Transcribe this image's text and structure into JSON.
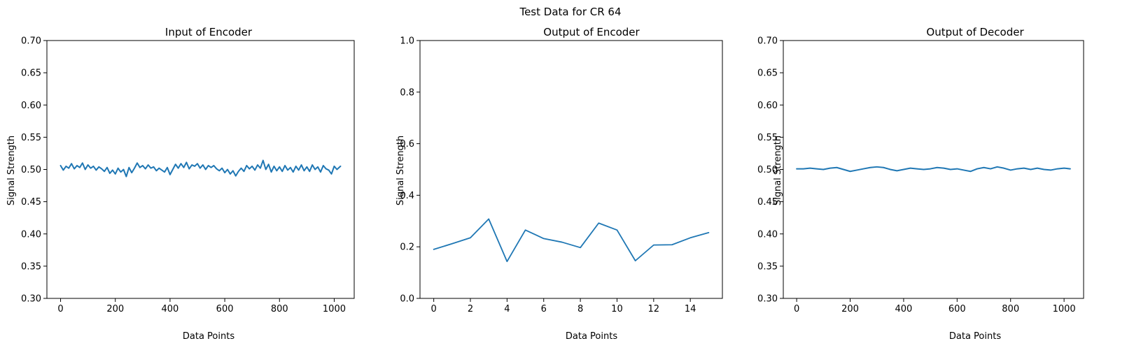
{
  "figure": {
    "suptitle": "Test Data for CR 64"
  },
  "colors": {
    "series": "#1f77b4",
    "axes": "#000000",
    "background": "#ffffff"
  },
  "chart_data": [
    {
      "type": "line",
      "title": "Input of Encoder",
      "xlabel": "Data Points",
      "ylabel": "Signal Strength",
      "xlim": [
        -50,
        1073
      ],
      "ylim": [
        0.3,
        0.7
      ],
      "xticks": [
        0,
        200,
        400,
        600,
        800,
        1000
      ],
      "yticks": [
        0.3,
        0.35,
        0.4,
        0.45,
        0.5,
        0.55,
        0.6,
        0.65,
        0.7
      ],
      "ytick_decimals": 2,
      "grid": false,
      "series": [
        {
          "x": [
            0,
            10,
            20,
            30,
            40,
            50,
            60,
            70,
            80,
            90,
            100,
            110,
            120,
            130,
            140,
            150,
            160,
            170,
            180,
            190,
            200,
            210,
            220,
            230,
            240,
            250,
            260,
            270,
            280,
            290,
            300,
            310,
            320,
            330,
            340,
            350,
            360,
            370,
            380,
            390,
            400,
            410,
            420,
            430,
            440,
            450,
            460,
            470,
            480,
            490,
            500,
            510,
            520,
            530,
            540,
            550,
            560,
            570,
            580,
            590,
            600,
            610,
            620,
            630,
            640,
            650,
            660,
            670,
            680,
            690,
            700,
            710,
            720,
            730,
            740,
            750,
            760,
            770,
            780,
            790,
            800,
            810,
            820,
            830,
            840,
            850,
            860,
            870,
            880,
            890,
            900,
            910,
            920,
            930,
            940,
            950,
            960,
            970,
            980,
            990,
            1000,
            1010,
            1023
          ],
          "values": [
            0.506,
            0.499,
            0.505,
            0.502,
            0.509,
            0.501,
            0.506,
            0.503,
            0.51,
            0.5,
            0.507,
            0.502,
            0.505,
            0.499,
            0.504,
            0.501,
            0.497,
            0.503,
            0.494,
            0.499,
            0.493,
            0.502,
            0.496,
            0.5,
            0.489,
            0.503,
            0.495,
            0.502,
            0.51,
            0.503,
            0.506,
            0.501,
            0.507,
            0.502,
            0.504,
            0.498,
            0.502,
            0.499,
            0.496,
            0.503,
            0.492,
            0.5,
            0.508,
            0.502,
            0.509,
            0.503,
            0.511,
            0.501,
            0.507,
            0.505,
            0.509,
            0.502,
            0.507,
            0.5,
            0.506,
            0.503,
            0.506,
            0.501,
            0.498,
            0.502,
            0.495,
            0.5,
            0.493,
            0.498,
            0.49,
            0.497,
            0.502,
            0.497,
            0.506,
            0.501,
            0.505,
            0.499,
            0.507,
            0.502,
            0.514,
            0.5,
            0.508,
            0.496,
            0.505,
            0.498,
            0.504,
            0.497,
            0.506,
            0.499,
            0.503,
            0.496,
            0.505,
            0.499,
            0.507,
            0.498,
            0.504,
            0.497,
            0.507,
            0.5,
            0.504,
            0.496,
            0.506,
            0.501,
            0.499,
            0.493,
            0.505,
            0.5,
            0.505
          ]
        }
      ]
    },
    {
      "type": "line",
      "title": "Output of Encoder",
      "xlabel": "Data Points",
      "ylabel": "Signal Strength",
      "xlim": [
        -0.75,
        15.75
      ],
      "ylim": [
        0.0,
        1.0
      ],
      "xticks": [
        0,
        2,
        4,
        6,
        8,
        10,
        12,
        14
      ],
      "yticks": [
        0.0,
        0.2,
        0.4,
        0.6,
        0.8,
        1.0
      ],
      "ytick_decimals": 1,
      "grid": false,
      "series": [
        {
          "x": [
            0,
            1,
            2,
            3,
            4,
            5,
            6,
            7,
            8,
            9,
            10,
            11,
            12,
            13,
            14,
            15
          ],
          "values": [
            0.19,
            0.212,
            0.235,
            0.308,
            0.143,
            0.265,
            0.232,
            0.218,
            0.197,
            0.292,
            0.265,
            0.146,
            0.207,
            0.208,
            0.235,
            0.255
          ]
        }
      ]
    },
    {
      "type": "line",
      "title": "Output of Decoder",
      "xlabel": "Data Points",
      "ylabel": "Signal Strength",
      "xlim": [
        -50,
        1073
      ],
      "ylim": [
        0.3,
        0.7
      ],
      "xticks": [
        0,
        200,
        400,
        600,
        800,
        1000
      ],
      "yticks": [
        0.3,
        0.35,
        0.4,
        0.45,
        0.5,
        0.55,
        0.6,
        0.65,
        0.7
      ],
      "ytick_decimals": 2,
      "grid": false,
      "series": [
        {
          "x": [
            0,
            25,
            50,
            75,
            100,
            125,
            150,
            175,
            200,
            225,
            250,
            275,
            300,
            325,
            350,
            375,
            400,
            425,
            450,
            475,
            500,
            525,
            550,
            575,
            600,
            625,
            650,
            675,
            700,
            725,
            750,
            775,
            800,
            825,
            850,
            875,
            900,
            925,
            950,
            975,
            1000,
            1023
          ],
          "values": [
            0.501,
            0.501,
            0.502,
            0.501,
            0.5,
            0.502,
            0.503,
            0.5,
            0.497,
            0.499,
            0.501,
            0.503,
            0.504,
            0.503,
            0.5,
            0.498,
            0.5,
            0.502,
            0.501,
            0.5,
            0.501,
            0.503,
            0.502,
            0.5,
            0.501,
            0.499,
            0.497,
            0.501,
            0.503,
            0.501,
            0.504,
            0.502,
            0.499,
            0.501,
            0.502,
            0.5,
            0.502,
            0.5,
            0.499,
            0.501,
            0.502,
            0.501
          ]
        }
      ]
    }
  ]
}
